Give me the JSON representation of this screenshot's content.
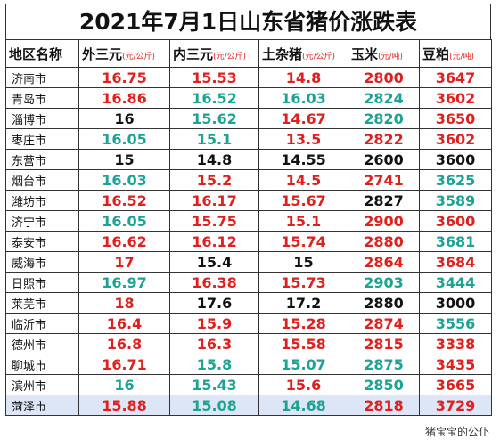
{
  "title": "2021年7月1日山东省猪价涨跌表",
  "header": [
    {
      "name": "地区名称"
    },
    {
      "name": "外三元",
      "unit": "(元/公斤)"
    },
    {
      "name": "内三元",
      "unit": "(元/公斤)"
    },
    {
      "name": "土杂猪",
      "unit": "(元/公斤)"
    },
    {
      "name": "玉米",
      "unit": "(元/吨)"
    },
    {
      "name": "豆粕",
      "unit": "(元/吨)"
    }
  ],
  "rows": [
    {
      "city": "济南市",
      "values": [
        16.75,
        15.53,
        14.8,
        2800,
        3647
      ],
      "colors": [
        "#e0201c",
        "#e0201c",
        "#e0201c",
        "#e0201c",
        "#e0201c"
      ]
    },
    {
      "city": "青岛市",
      "values": [
        16.86,
        16.52,
        16.03,
        2824,
        3602
      ],
      "colors": [
        "#e0201c",
        "#1ba394",
        "#1ba394",
        "#1ba394",
        "#e0201c"
      ]
    },
    {
      "city": "淄博市",
      "values": [
        16,
        15.62,
        14.67,
        2820,
        3650
      ],
      "colors": [
        "#111111",
        "#1ba394",
        "#e0201c",
        "#1ba394",
        "#e0201c"
      ]
    },
    {
      "city": "枣庄市",
      "values": [
        16.05,
        15.1,
        13.5,
        2822,
        3602
      ],
      "colors": [
        "#1ba394",
        "#1ba394",
        "#e0201c",
        "#e0201c",
        "#e0201c"
      ]
    },
    {
      "city": "东营市",
      "values": [
        15,
        14.8,
        14.55,
        2600,
        3600
      ],
      "colors": [
        "#111111",
        "#111111",
        "#111111",
        "#111111",
        "#111111"
      ]
    },
    {
      "city": "烟台市",
      "values": [
        16.03,
        15.2,
        14.5,
        2741,
        3625
      ],
      "colors": [
        "#1ba394",
        "#e0201c",
        "#e0201c",
        "#e0201c",
        "#1ba394"
      ]
    },
    {
      "city": "潍坊市",
      "values": [
        16.52,
        16.17,
        15.67,
        2827,
        3589
      ],
      "colors": [
        "#e0201c",
        "#e0201c",
        "#e0201c",
        "#111111",
        "#1ba394"
      ]
    },
    {
      "city": "济宁市",
      "values": [
        16.05,
        15.75,
        15.1,
        2900,
        3600
      ],
      "colors": [
        "#1ba394",
        "#e0201c",
        "#e0201c",
        "#e0201c",
        "#e0201c"
      ]
    },
    {
      "city": "泰安市",
      "values": [
        16.62,
        16.12,
        15.74,
        2880,
        3681
      ],
      "colors": [
        "#e0201c",
        "#e0201c",
        "#e0201c",
        "#e0201c",
        "#1ba394"
      ]
    },
    {
      "city": "威海市",
      "values": [
        17,
        15.4,
        15,
        2864,
        3684
      ],
      "colors": [
        "#e0201c",
        "#111111",
        "#111111",
        "#e0201c",
        "#e0201c"
      ]
    },
    {
      "city": "日照市",
      "values": [
        16.97,
        16.38,
        15.73,
        2903,
        3444
      ],
      "colors": [
        "#1ba394",
        "#e0201c",
        "#e0201c",
        "#1ba394",
        "#1ba394"
      ]
    },
    {
      "city": "莱芜市",
      "values": [
        18,
        17.6,
        17.2,
        2880,
        3000
      ],
      "colors": [
        "#e0201c",
        "#111111",
        "#111111",
        "#111111",
        "#111111"
      ]
    },
    {
      "city": "临沂市",
      "values": [
        16.4,
        15.9,
        15.28,
        2874,
        3556
      ],
      "colors": [
        "#e0201c",
        "#e0201c",
        "#e0201c",
        "#e0201c",
        "#1ba394"
      ]
    },
    {
      "city": "德州市",
      "values": [
        16.8,
        16.3,
        15.58,
        2815,
        3338
      ],
      "colors": [
        "#e0201c",
        "#e0201c",
        "#e0201c",
        "#e0201c",
        "#e0201c"
      ]
    },
    {
      "city": "聊城市",
      "values": [
        16.71,
        15.8,
        15.07,
        2875,
        3435
      ],
      "colors": [
        "#e0201c",
        "#1ba394",
        "#1ba394",
        "#1ba394",
        "#e0201c"
      ]
    },
    {
      "city": "滨州市",
      "values": [
        16,
        15.43,
        15.6,
        2850,
        3665
      ],
      "colors": [
        "#1ba394",
        "#1ba394",
        "#e0201c",
        "#1ba394",
        "#e0201c"
      ]
    },
    {
      "city": "菏泽市",
      "values": [
        15.88,
        15.08,
        14.68,
        2818,
        3729
      ],
      "colors": [
        "#e0201c",
        "#1ba394",
        "#1ba394",
        "#e0201c",
        "#e0201c"
      ]
    }
  ],
  "footer": "猪宝宝的公仆"
}
